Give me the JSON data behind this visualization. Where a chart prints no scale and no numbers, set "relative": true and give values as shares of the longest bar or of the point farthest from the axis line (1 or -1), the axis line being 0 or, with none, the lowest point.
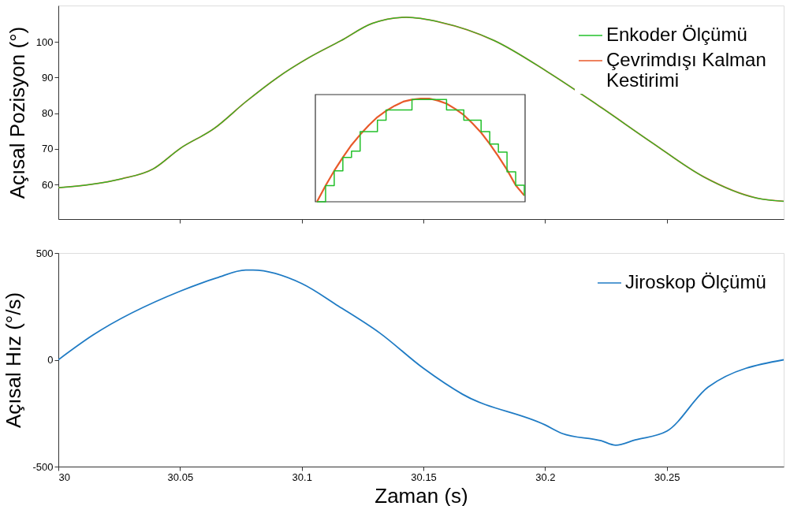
{
  "chart_data": [
    {
      "type": "line",
      "ylabel": "Açısal Pozisyon (°)",
      "xlim": [
        30,
        30.298
      ],
      "xticks": [
        {
          "value": 30.05,
          "label": null
        },
        {
          "value": 30.1,
          "label": null
        },
        {
          "value": 30.15,
          "label": null
        },
        {
          "value": 30.2,
          "label": null
        },
        {
          "value": 30.25,
          "label": null
        }
      ],
      "ylim": [
        50.3,
        110.2
      ],
      "yticks": [
        60,
        70,
        80,
        90,
        100
      ],
      "tick_labels": "y",
      "grid": false,
      "legend": "top right",
      "x": [
        30,
        30.013,
        30.026,
        30.039,
        30.05,
        30.064,
        30.077,
        30.09,
        30.103,
        30.116,
        30.129,
        30.143,
        30.157,
        30.179,
        30.201,
        30.222,
        30.244,
        30.265,
        30.287,
        30.298
      ],
      "series": [
        {
          "name": "Enkoder Ölçümü",
          "color": "#22c02a",
          "values": [
            59.1,
            60.0,
            61.6,
            64.4,
            70.1,
            75.7,
            83.2,
            90.0,
            95.6,
            100.3,
            105.2,
            106.9,
            105.5,
            100.4,
            91.6,
            82.1,
            71.7,
            62.2,
            56.2,
            55.3
          ]
        },
        {
          "name": "Çevrimdışı Kalman Kestirimi",
          "color": "#e8592a",
          "values": [
            59.1,
            60.0,
            61.6,
            64.4,
            70.1,
            75.7,
            83.2,
            90.0,
            95.6,
            100.3,
            105.2,
            106.9,
            105.5,
            100.4,
            91.6,
            82.1,
            71.7,
            62.2,
            56.2,
            55.3
          ]
        }
      ]
    },
    {
      "type": "line",
      "relative": true,
      "categories": [
        null,
        null,
        null,
        null,
        null,
        null,
        null,
        null,
        null,
        null,
        null,
        null,
        null,
        null,
        null,
        null,
        null,
        null,
        null,
        null,
        null,
        null,
        null,
        null,
        null
      ],
      "series": [
        {
          "type": "step",
          "color": "#22c02a",
          "values": [
            0,
            0.157,
            0.3,
            0.43,
            0.49,
            0.68,
            0.68,
            0.79,
            0.89,
            0.89,
            0.89,
            0.99,
            0.99,
            0.99,
            0.99,
            0.89,
            0.89,
            0.79,
            0.79,
            0.68,
            0.56,
            0.48,
            0.29,
            0.16,
            0.06
          ]
        },
        {
          "type": "line",
          "color": "#e8592a",
          "values": [
            0,
            0.157,
            0.3,
            0.43,
            0.55,
            0.65,
            0.74,
            0.82,
            0.88,
            0.93,
            0.97,
            0.99,
            1.0,
            1.0,
            0.98,
            0.95,
            0.9,
            0.84,
            0.76,
            0.67,
            0.56,
            0.44,
            0.31,
            0.16,
            0.06
          ]
        }
      ]
    },
    {
      "type": "line",
      "xlabel": "Zaman (s)",
      "ylabel": "Açısal Hız (°/s)",
      "xlim": [
        30,
        30.298
      ],
      "xticks": [
        30,
        30.05,
        30.1,
        30.15,
        30.2,
        30.25
      ],
      "ylim": [
        -500,
        500
      ],
      "yticks": [
        -500,
        0,
        500
      ],
      "grid": false,
      "legend": "top right",
      "x": [
        30,
        30.014,
        30.05,
        30.065,
        30.077,
        30.08,
        30.1,
        30.115,
        30.132,
        30.15,
        30.166,
        30.2,
        30.207,
        30.223,
        30.229,
        30.237,
        30.25,
        30.267,
        30.298
      ],
      "series": [
        {
          "name": "Jiroskop Ölçümü",
          "color": "#1f7bc4",
          "values": [
            0,
            114,
            321,
            383,
            420,
            420,
            357,
            252,
            126,
            -40,
            -161,
            -305,
            -345,
            -379,
            -400,
            -375,
            -334,
            -127,
            0
          ]
        }
      ]
    }
  ]
}
